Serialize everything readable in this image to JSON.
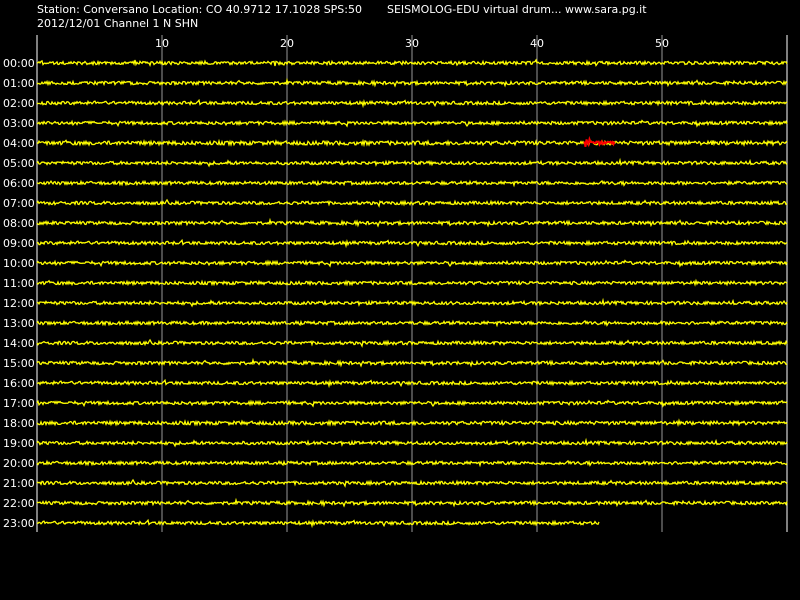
{
  "header": {
    "station_info": "Station: Conversano Location: CO 40.9712 17.1028 SPS:50",
    "date_channel": "2012/12/01  Channel 1 N SHN",
    "app_title": "SEISMOLOG-EDU virtual drum... www.sara.pg.it"
  },
  "colors": {
    "background": "#000000",
    "trace": "#ffff00",
    "gridline": "#ffffff",
    "event_marker": "#ff0000",
    "text": "#ffffff"
  },
  "chart_data": {
    "type": "line",
    "x_unit": "minutes",
    "xlim": [
      0,
      60
    ],
    "x_ticks": [
      10,
      20,
      30,
      40,
      50
    ],
    "x_tick_labels": [
      "10",
      "20",
      "30",
      "40",
      "50"
    ],
    "vertical_grid": true,
    "row_labels": [
      "00:00",
      "01:00",
      "02:00",
      "03:00",
      "04:00",
      "05:00",
      "06:00",
      "07:00",
      "08:00",
      "09:00",
      "10:00",
      "11:00",
      "12:00",
      "13:00",
      "14:00",
      "15:00",
      "16:00",
      "17:00",
      "18:00",
      "19:00",
      "20:00",
      "21:00",
      "22:00",
      "23:00"
    ],
    "trace_end_minutes": [
      60,
      60,
      60,
      60,
      60,
      60,
      60,
      60,
      60,
      60,
      60,
      60,
      60,
      60,
      60,
      60,
      60,
      60,
      60,
      60,
      60,
      60,
      60,
      45
    ],
    "amplitude_level": [
      0.5,
      0.5,
      0.5,
      0.5,
      0.6,
      0.5,
      0.5,
      0.5,
      0.5,
      0.5,
      0.5,
      0.5,
      0.5,
      0.5,
      0.5,
      0.5,
      0.5,
      0.5,
      0.55,
      0.5,
      0.5,
      0.5,
      0.5,
      0.5
    ],
    "events": [
      {
        "row": "04:00",
        "start_minute": 43.8,
        "end_minute": 46.2
      }
    ]
  }
}
